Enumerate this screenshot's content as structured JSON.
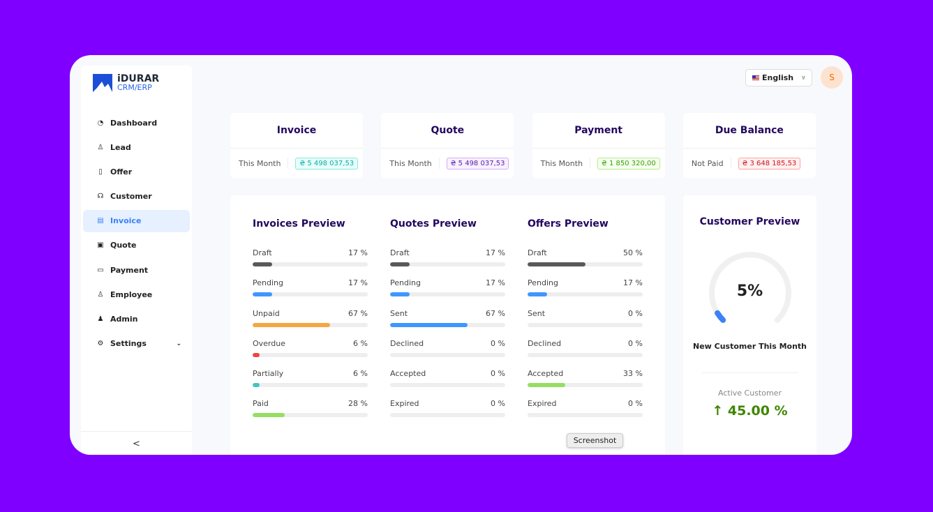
{
  "brand": {
    "name": "iDURAR",
    "sub": "CRM/ERP"
  },
  "sidebar": {
    "items": [
      {
        "label": "Dashboard",
        "icon": "dashboard-icon",
        "g": "◔"
      },
      {
        "label": "Lead",
        "icon": "user-icon",
        "g": "♙"
      },
      {
        "label": "Offer",
        "icon": "file-icon",
        "g": "▯"
      },
      {
        "label": "Customer",
        "icon": "headset-icon",
        "g": "☊"
      },
      {
        "label": "Invoice",
        "icon": "invoice-icon",
        "g": "▤",
        "active": true
      },
      {
        "label": "Quote",
        "icon": "quote-icon",
        "g": "▣"
      },
      {
        "label": "Payment",
        "icon": "credit-card-icon",
        "g": "▭"
      },
      {
        "label": "Employee",
        "icon": "user-icon",
        "g": "♙"
      },
      {
        "label": "Admin",
        "icon": "admin-icon",
        "g": "♟"
      },
      {
        "label": "Settings",
        "icon": "gear-icon",
        "g": "⚙",
        "chevron": true
      }
    ],
    "collapse": "<"
  },
  "header": {
    "language": "English",
    "avatar": "S"
  },
  "cards": [
    {
      "title": "Invoice",
      "label": "This Month",
      "value": "₴ 5 498 037,53",
      "color": "#13a8a8",
      "bg": "#e6fffb",
      "border": "#87e8de"
    },
    {
      "title": "Quote",
      "label": "This Month",
      "value": "₴ 5 498 037,53",
      "color": "#531dab",
      "bg": "#f9f0ff",
      "border": "#d3adf7"
    },
    {
      "title": "Payment",
      "label": "This Month",
      "value": "₴ 1 850 320,00",
      "color": "#389e0d",
      "bg": "#f6ffed",
      "border": "#b7eb8f"
    },
    {
      "title": "Due Balance",
      "label": "Not Paid",
      "value": "₴ 3 648 185,53",
      "color": "#cf1322",
      "bg": "#fff1f0",
      "border": "#ffa39e"
    }
  ],
  "previews": [
    {
      "title": "Invoices Preview",
      "rows": [
        {
          "label": "Draft",
          "pct": 17,
          "text": "17 %",
          "color": "#595959"
        },
        {
          "label": "Pending",
          "pct": 17,
          "text": "17 %",
          "color": "#4096ff"
        },
        {
          "label": "Unpaid",
          "pct": 67,
          "text": "67 %",
          "color": "#f5a742"
        },
        {
          "label": "Overdue",
          "pct": 6,
          "text": "6 %",
          "color": "#ef4444"
        },
        {
          "label": "Partially",
          "pct": 6,
          "text": "6 %",
          "color": "#40c5c5"
        },
        {
          "label": "Paid",
          "pct": 28,
          "text": "28 %",
          "color": "#95de64"
        }
      ]
    },
    {
      "title": "Quotes Preview",
      "rows": [
        {
          "label": "Draft",
          "pct": 17,
          "text": "17 %",
          "color": "#595959"
        },
        {
          "label": "Pending",
          "pct": 17,
          "text": "17 %",
          "color": "#4096ff"
        },
        {
          "label": "Sent",
          "pct": 67,
          "text": "67 %",
          "color": "#4096ff"
        },
        {
          "label": "Declined",
          "pct": 0,
          "text": "0 %",
          "color": "#ef4444"
        },
        {
          "label": "Accepted",
          "pct": 0,
          "text": "0 %",
          "color": "#95de64"
        },
        {
          "label": "Expired",
          "pct": 0,
          "text": "0 %",
          "color": "#595959"
        }
      ]
    },
    {
      "title": "Offers Preview",
      "rows": [
        {
          "label": "Draft",
          "pct": 50,
          "text": "50 %",
          "color": "#595959"
        },
        {
          "label": "Pending",
          "pct": 17,
          "text": "17 %",
          "color": "#4096ff"
        },
        {
          "label": "Sent",
          "pct": 0,
          "text": "0 %",
          "color": "#4096ff"
        },
        {
          "label": "Declined",
          "pct": 0,
          "text": "0 %",
          "color": "#ef4444"
        },
        {
          "label": "Accepted",
          "pct": 33,
          "text": "33 %",
          "color": "#95de64"
        },
        {
          "label": "Expired",
          "pct": 0,
          "text": "0 %",
          "color": "#595959"
        }
      ]
    }
  ],
  "customer": {
    "title": "Customer Preview",
    "percent": 5,
    "percent_text": "5%",
    "new_label": "New Customer This Month",
    "active_label": "Active Customer",
    "active_value": "↑ 45.00 %",
    "accent": "#3b82f6"
  },
  "tooltip": "Screenshot"
}
